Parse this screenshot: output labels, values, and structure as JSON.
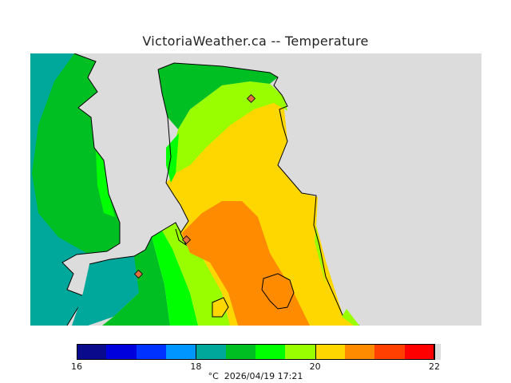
{
  "title": "VictoriaWeather.ca -- Temperature",
  "footer": {
    "unit": "°C",
    "timestamp": "2026/04/19 17:21"
  },
  "legend": {
    "min": 16,
    "max": 22,
    "step": 0.5,
    "ticks": [
      "16",
      "18",
      "20",
      "22"
    ],
    "colors": [
      "#0a0a8c",
      "#0000dc",
      "#0032ff",
      "#0096ff",
      "#00a89c",
      "#00bf22",
      "#00ff00",
      "#99ff00",
      "#ffd700",
      "#ff8c00",
      "#ff4000",
      "#ff0000"
    ]
  },
  "map": {
    "water_color": "#dcdcdc",
    "coast_color": "#000000",
    "station_color": "#e07040",
    "stations": 3
  }
}
